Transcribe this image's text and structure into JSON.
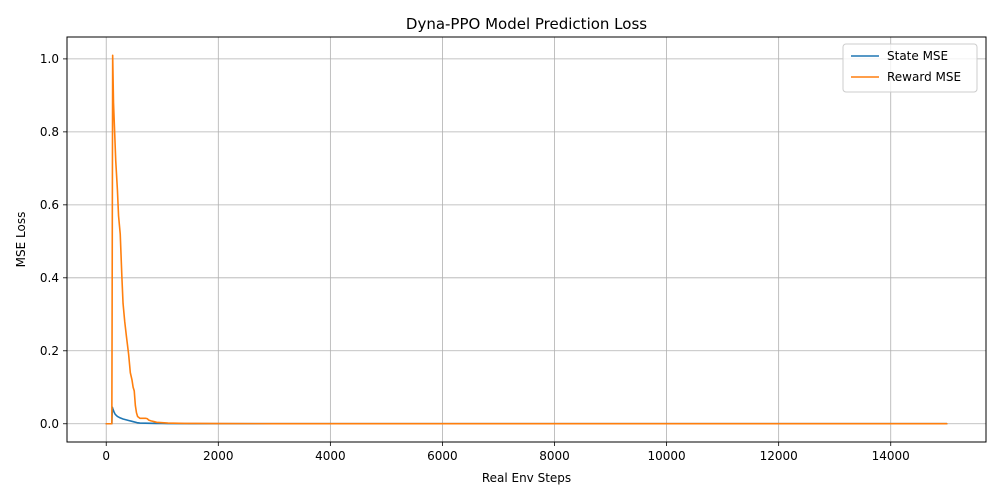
{
  "chart_data": {
    "type": "line",
    "title": "Dyna-PPO Model Prediction Loss",
    "xlabel": "Real Env Steps",
    "ylabel": "MSE Loss",
    "xlim": [
      -700,
      15700
    ],
    "ylim": [
      -0.05,
      1.06
    ],
    "xticks": [
      0,
      2000,
      4000,
      6000,
      8000,
      10000,
      12000,
      14000
    ],
    "xtick_labels": [
      "0",
      "2000",
      "4000",
      "6000",
      "8000",
      "10000",
      "12000",
      "14000"
    ],
    "yticks": [
      0.0,
      0.2,
      0.4,
      0.6,
      0.8,
      1.0
    ],
    "ytick_labels": [
      "0.0",
      "0.2",
      "0.4",
      "0.6",
      "0.8",
      "1.0"
    ],
    "grid": true,
    "legend_position": "top-right",
    "series": [
      {
        "name": "State MSE",
        "color": "#1f77b4",
        "x": [
          0,
          100,
          110,
          120,
          140,
          160,
          200,
          250,
          300,
          350,
          400,
          450,
          500,
          550,
          600,
          700,
          800,
          900,
          1000,
          1100,
          1200,
          1500,
          2000,
          3000,
          4000,
          5000,
          6000,
          7000,
          8000,
          9000,
          10000,
          11000,
          12000,
          13000,
          14000,
          15000
        ],
        "y": [
          0.0,
          0.0,
          0.045,
          0.04,
          0.032,
          0.026,
          0.02,
          0.016,
          0.013,
          0.011,
          0.009,
          0.007,
          0.005,
          0.003,
          0.002,
          0.0015,
          0.0012,
          0.001,
          0.0008,
          0.0006,
          0.0005,
          0.0003,
          0.0002,
          0.0001,
          0.0001,
          0.0001,
          0.0001,
          0.0001,
          0.0001,
          0.0001,
          0.0001,
          0.0001,
          0.0001,
          0.0001,
          0.0001,
          0.0001
        ]
      },
      {
        "name": "Reward MSE",
        "color": "#ff7f0e",
        "x": [
          0,
          100,
          105,
          115,
          130,
          150,
          170,
          200,
          220,
          250,
          280,
          300,
          330,
          360,
          400,
          430,
          460,
          480,
          500,
          520,
          540,
          560,
          600,
          650,
          700,
          730,
          760,
          800,
          850,
          900,
          1000,
          1100,
          1200,
          1400,
          1600,
          2000,
          3000,
          4000,
          5000,
          6000,
          7000,
          8000,
          9000,
          10000,
          11000,
          12000,
          13000,
          14000,
          15000
        ],
        "y": [
          0.0,
          0.0,
          0.3,
          1.01,
          0.88,
          0.8,
          0.72,
          0.64,
          0.57,
          0.52,
          0.4,
          0.33,
          0.28,
          0.24,
          0.19,
          0.14,
          0.12,
          0.1,
          0.09,
          0.05,
          0.03,
          0.02,
          0.015,
          0.015,
          0.015,
          0.014,
          0.01,
          0.008,
          0.006,
          0.004,
          0.003,
          0.002,
          0.0015,
          0.001,
          0.0008,
          0.0005,
          0.0003,
          0.0002,
          0.0002,
          0.0002,
          0.0002,
          0.0002,
          0.0002,
          0.0002,
          0.0002,
          0.0002,
          0.0002,
          0.0002,
          0.0002
        ]
      }
    ]
  }
}
